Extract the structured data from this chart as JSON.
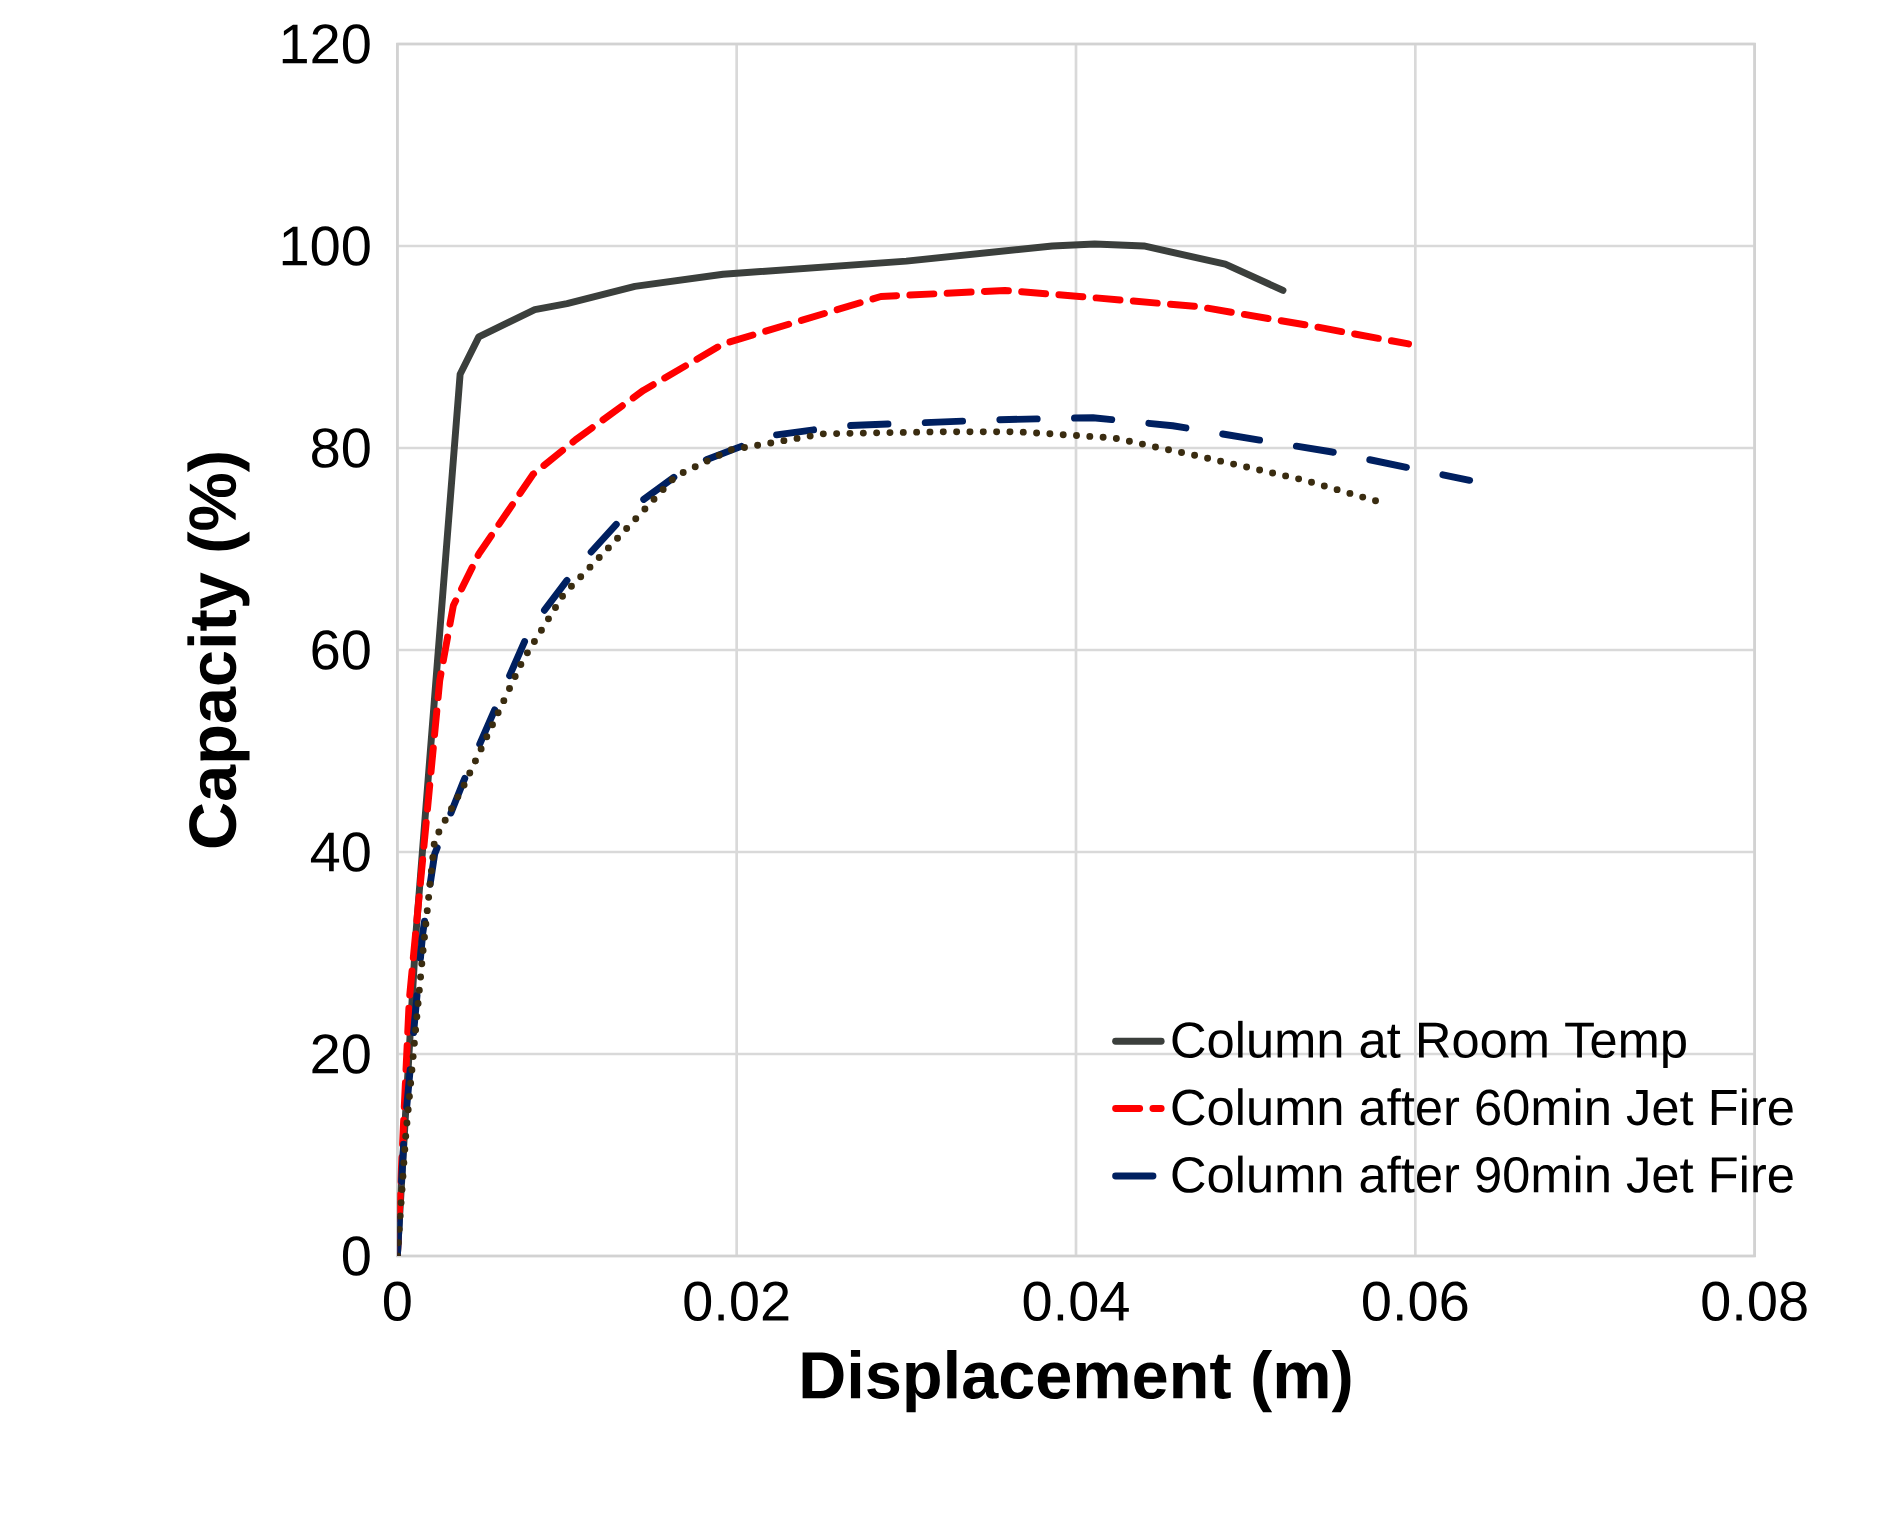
{
  "chart_data": {
    "type": "line",
    "xlabel": "Displacement (m)",
    "ylabel": "Capacity (%)",
    "xlim": [
      0,
      0.08
    ],
    "ylim": [
      0,
      120
    ],
    "xticks": [
      0,
      0.02,
      0.04,
      0.06,
      0.08
    ],
    "yticks": [
      0,
      20,
      40,
      60,
      80,
      100,
      120
    ],
    "grid": true,
    "legend": "bottom right",
    "marker": "none",
    "series": [
      {
        "name": "Column at Room Temp",
        "color": "#3b3f3c",
        "line_style": "solid",
        "x": [
          0,
          0.0011,
          0.0037,
          0.0048,
          0.0081,
          0.01,
          0.014,
          0.0192,
          0.03,
          0.0386,
          0.0411,
          0.044,
          0.0488,
          0.0522
        ],
        "values": [
          0,
          32,
          87.3,
          91,
          93.7,
          94.3,
          96,
          97.2,
          98.5,
          100,
          100.2,
          100,
          98.2,
          95.6
        ]
      },
      {
        "name": "Column after 60min Jet Fire",
        "color": "#ff0000",
        "line_style": "dashed",
        "x": [
          0,
          0.0007,
          0.0025,
          0.0033,
          0.0048,
          0.008,
          0.0105,
          0.0145,
          0.0192,
          0.0285,
          0.0358,
          0.0402,
          0.0472,
          0.0535,
          0.0596
        ],
        "values": [
          0,
          25.3,
          57,
          64.4,
          69.5,
          77.4,
          80.8,
          85.7,
          90.3,
          95,
          95.6,
          95,
          94,
          92.2,
          90.3
        ]
      },
      {
        "name": "Column after 90min Jet Fire",
        "color": "#002060",
        "line_style": "dashdot",
        "x": [
          0,
          0.0004,
          0.0015,
          0.0022,
          0.0039,
          0.0078,
          0.0105,
          0.0137,
          0.0172,
          0.0219,
          0.0263,
          0.0355,
          0.041,
          0.0457,
          0.0551,
          0.0632
        ],
        "values": [
          0,
          12,
          32,
          39.8,
          47,
          62,
          68,
          73.9,
          78.2,
          81.2,
          82.2,
          82.8,
          83,
          82.2,
          79.6,
          76.8
        ]
      },
      {
        "color": "#3a2c10",
        "line_style": "dotted",
        "x": [
          0,
          0.0005,
          0.0015,
          0.0022,
          0.0039,
          0.0074,
          0.0098,
          0.0121,
          0.0164,
          0.0196,
          0.0251,
          0.0316,
          0.0366,
          0.0422,
          0.0472,
          0.0535,
          0.0582
        ],
        "values": [
          0,
          12,
          30,
          41.2,
          46.5,
          59,
          65.5,
          69.5,
          77.2,
          79.8,
          81.4,
          81.6,
          81.6,
          81,
          79.2,
          76.8,
          74.5
        ]
      }
    ]
  }
}
